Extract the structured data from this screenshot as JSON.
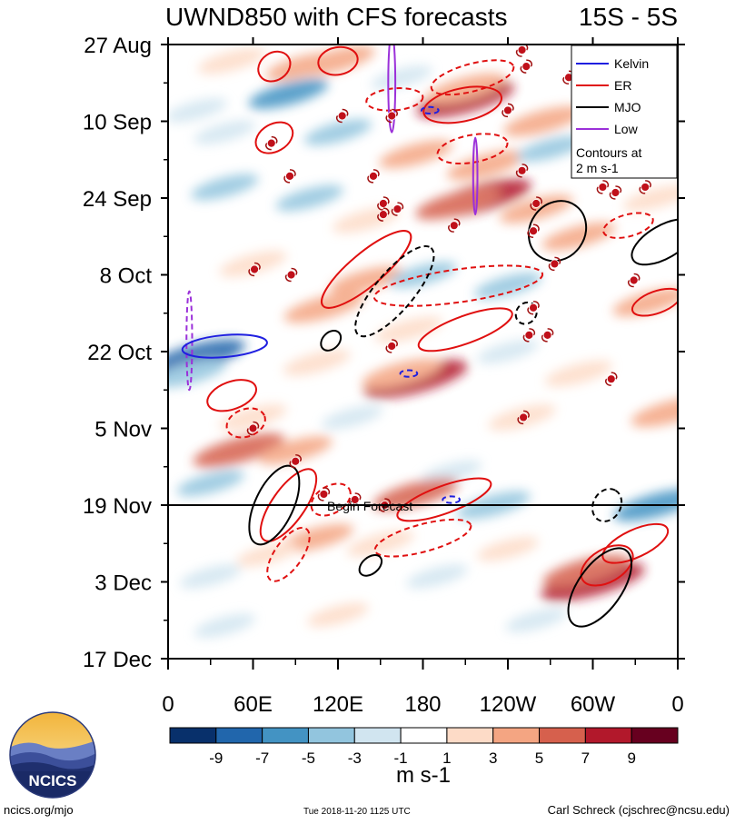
{
  "chart_data": {
    "type": "heatmap",
    "title_left": "UWND850 with CFS forecasts",
    "title_right": "15S - 5S",
    "x_ticks": [
      {
        "lon": 0,
        "label": "0"
      },
      {
        "lon": 60,
        "label": "60E"
      },
      {
        "lon": 120,
        "label": "120E"
      },
      {
        "lon": 180,
        "label": "180"
      },
      {
        "lon": 240,
        "label": "120W"
      },
      {
        "lon": 300,
        "label": "60W"
      },
      {
        "lon": 360,
        "label": "0"
      }
    ],
    "y_ticks": [
      {
        "day": 0,
        "label": "27 Aug"
      },
      {
        "day": 14,
        "label": "10 Sep"
      },
      {
        "day": 28,
        "label": "24 Sep"
      },
      {
        "day": 42,
        "label": "8 Oct"
      },
      {
        "day": 56,
        "label": "22 Oct"
      },
      {
        "day": 70,
        "label": "5 Nov"
      },
      {
        "day": 84,
        "label": "19 Nov"
      },
      {
        "day": 98,
        "label": "3 Dec"
      },
      {
        "day": 112,
        "label": "17 Dec"
      }
    ],
    "forecast_start_day": 84,
    "forecast_label": "Begin Forecast",
    "legend": {
      "entries": [
        {
          "name": "Kelvin",
          "color": "#1f1fe0"
        },
        {
          "name": "ER",
          "color": "#e01010"
        },
        {
          "name": "MJO",
          "color": "#000000"
        },
        {
          "name": "Low",
          "color": "#9b30d9"
        }
      ],
      "note_line1": "Contours at",
      "note_line2": "2 m s-1"
    },
    "colorbar": {
      "levels": [
        -10,
        -8,
        -6,
        -4,
        -2,
        0,
        2,
        4,
        6,
        8,
        10
      ],
      "colors": [
        "#08306b",
        "#2166ac",
        "#4393c3",
        "#92c5de",
        "#d1e5f0",
        "#ffffff",
        "#fddbc7",
        "#f4a582",
        "#d6604d",
        "#b2182b",
        "#67001f"
      ],
      "tick_labels": [
        "-9",
        "-7",
        "-5",
        "-3",
        "-1",
        "1",
        "3",
        "5",
        "7",
        "9"
      ],
      "units": "m s-1"
    },
    "anomaly_blobs": [
      {
        "lon": 45,
        "day": 3,
        "v": 3
      },
      {
        "lon": 95,
        "day": 4,
        "v": 4
      },
      {
        "lon": 118,
        "day": 3,
        "v": 5
      },
      {
        "lon": 165,
        "day": 6,
        "v": -2
      },
      {
        "lon": 210,
        "day": 10,
        "v": 8
      },
      {
        "lon": 210,
        "day": 8,
        "v": 5
      },
      {
        "lon": 85,
        "day": 9,
        "v": -5
      },
      {
        "lon": 20,
        "day": 12,
        "v": -2
      },
      {
        "lon": 265,
        "day": 14,
        "v": 5
      },
      {
        "lon": 40,
        "day": 16,
        "v": -2
      },
      {
        "lon": 120,
        "day": 16,
        "v": -3
      },
      {
        "lon": 175,
        "day": 20,
        "v": 4
      },
      {
        "lon": 225,
        "day": 22,
        "v": 5
      },
      {
        "lon": 270,
        "day": 19,
        "v": -3
      },
      {
        "lon": 330,
        "day": 20,
        "v": 4
      },
      {
        "lon": 220,
        "day": 28,
        "v": 9
      },
      {
        "lon": 205,
        "day": 29,
        "v": 6
      },
      {
        "lon": 140,
        "day": 32,
        "v": 3
      },
      {
        "lon": 260,
        "day": 30,
        "v": 4
      },
      {
        "lon": 345,
        "day": 28,
        "v": 3
      },
      {
        "lon": 40,
        "day": 26,
        "v": -3
      },
      {
        "lon": 100,
        "day": 28,
        "v": -3
      },
      {
        "lon": 290,
        "day": 35,
        "v": 4
      },
      {
        "lon": 60,
        "day": 40,
        "v": 3
      },
      {
        "lon": 140,
        "day": 43,
        "v": 4
      },
      {
        "lon": 180,
        "day": 42,
        "v": -3
      },
      {
        "lon": 240,
        "day": 44,
        "v": -3
      },
      {
        "lon": 340,
        "day": 47,
        "v": 4
      },
      {
        "lon": 110,
        "day": 48,
        "v": 5
      },
      {
        "lon": 170,
        "day": 52,
        "v": 3
      },
      {
        "lon": 20,
        "day": 57,
        "v": -8
      },
      {
        "lon": 15,
        "day": 60,
        "v": -4
      },
      {
        "lon": 175,
        "day": 61,
        "v": 9
      },
      {
        "lon": 165,
        "day": 60,
        "v": 5
      },
      {
        "lon": 105,
        "day": 58,
        "v": 3
      },
      {
        "lon": 290,
        "day": 60,
        "v": 3
      },
      {
        "lon": 240,
        "day": 56,
        "v": -2
      },
      {
        "lon": 60,
        "day": 68,
        "v": 3
      },
      {
        "lon": 130,
        "day": 68,
        "v": -2
      },
      {
        "lon": 250,
        "day": 68,
        "v": 3
      },
      {
        "lon": 355,
        "day": 67,
        "v": 5
      },
      {
        "lon": 50,
        "day": 74,
        "v": 7
      },
      {
        "lon": 90,
        "day": 74,
        "v": 4
      },
      {
        "lon": 30,
        "day": 80,
        "v": -3
      },
      {
        "lon": 200,
        "day": 78,
        "v": -2
      },
      {
        "lon": 175,
        "day": 82,
        "v": 6
      },
      {
        "lon": 230,
        "day": 84,
        "v": -4
      },
      {
        "lon": 345,
        "day": 84,
        "v": -6
      },
      {
        "lon": 105,
        "day": 90,
        "v": 4
      },
      {
        "lon": 150,
        "day": 91,
        "v": 3
      },
      {
        "lon": 70,
        "day": 93,
        "v": 2
      },
      {
        "lon": 300,
        "day": 98,
        "v": 9
      },
      {
        "lon": 295,
        "day": 96,
        "v": 6
      },
      {
        "lon": 30,
        "day": 97,
        "v": -2
      },
      {
        "lon": 190,
        "day": 97,
        "v": -2
      },
      {
        "lon": 240,
        "day": 92,
        "v": 2
      },
      {
        "lon": 120,
        "day": 104,
        "v": 2
      },
      {
        "lon": 40,
        "day": 106,
        "v": -2
      },
      {
        "lon": 260,
        "day": 105,
        "v": -2
      }
    ],
    "contours": [
      {
        "kind": "ER",
        "dashed": false,
        "lon": 75,
        "day": 4,
        "rx": 12,
        "ry": 2.5,
        "rot": -35
      },
      {
        "kind": "ER",
        "dashed": false,
        "lon": 120,
        "day": 3,
        "rx": 14,
        "ry": 2.5,
        "rot": -10
      },
      {
        "kind": "ER",
        "dashed": true,
        "lon": 215,
        "day": 6,
        "rx": 30,
        "ry": 2.5,
        "rot": -15
      },
      {
        "kind": "ER",
        "dashed": false,
        "lon": 208,
        "day": 11,
        "rx": 28,
        "ry": 3,
        "rot": -12
      },
      {
        "kind": "ER",
        "dashed": true,
        "lon": 160,
        "day": 10,
        "rx": 20,
        "ry": 2,
        "rot": -5
      },
      {
        "kind": "ER",
        "dashed": true,
        "lon": 215,
        "day": 19,
        "rx": 25,
        "ry": 2.5,
        "rot": -10
      },
      {
        "kind": "ER",
        "dashed": false,
        "lon": 75,
        "day": 17,
        "rx": 14,
        "ry": 2.5,
        "rot": -30
      },
      {
        "kind": "ER",
        "dashed": false,
        "lon": 140,
        "day": 41,
        "rx": 40,
        "ry": 3,
        "rot": -40
      },
      {
        "kind": "ER",
        "dashed": false,
        "lon": 210,
        "day": 52,
        "rx": 35,
        "ry": 2.5,
        "rot": -20
      },
      {
        "kind": "ER",
        "dashed": true,
        "lon": 205,
        "day": 44,
        "rx": 60,
        "ry": 3,
        "rot": -8
      },
      {
        "kind": "ER",
        "dashed": false,
        "lon": 45,
        "day": 64,
        "rx": 18,
        "ry": 2.5,
        "rot": -20
      },
      {
        "kind": "ER",
        "dashed": true,
        "lon": 55,
        "day": 69,
        "rx": 14,
        "ry": 2.5,
        "rot": -20
      },
      {
        "kind": "ER",
        "dashed": false,
        "lon": 85,
        "day": 84,
        "rx": 30,
        "ry": 3,
        "rot": -55
      },
      {
        "kind": "ER",
        "dashed": true,
        "lon": 85,
        "day": 93,
        "rx": 22,
        "ry": 2.5,
        "rot": -55
      },
      {
        "kind": "ER",
        "dashed": false,
        "lon": 195,
        "day": 83,
        "rx": 35,
        "ry": 2.5,
        "rot": -20
      },
      {
        "kind": "ER",
        "dashed": true,
        "lon": 180,
        "day": 90,
        "rx": 35,
        "ry": 2.5,
        "rot": -15
      },
      {
        "kind": "ER",
        "dashed": true,
        "lon": 115,
        "day": 83,
        "rx": 15,
        "ry": 2.5,
        "rot": -30
      },
      {
        "kind": "ER",
        "dashed": false,
        "lon": 330,
        "day": 91,
        "rx": 25,
        "ry": 2.5,
        "rot": -25
      },
      {
        "kind": "ER",
        "dashed": false,
        "lon": 310,
        "day": 95,
        "rx": 20,
        "ry": 3,
        "rot": -30
      },
      {
        "kind": "ER",
        "dashed": true,
        "lon": 325,
        "day": 33,
        "rx": 18,
        "ry": 2,
        "rot": -15
      },
      {
        "kind": "ER",
        "dashed": false,
        "lon": 345,
        "day": 47,
        "rx": 18,
        "ry": 2,
        "rot": -20
      },
      {
        "kind": "MJO",
        "dashed": false,
        "lon": 275,
        "day": 34,
        "rx": 22,
        "ry": 5,
        "rot": -55
      },
      {
        "kind": "MJO",
        "dashed": false,
        "lon": 350,
        "day": 36,
        "rx": 25,
        "ry": 3,
        "rot": -30
      },
      {
        "kind": "MJO",
        "dashed": true,
        "lon": 160,
        "day": 45,
        "rx": 40,
        "ry": 3.5,
        "rot": -50
      },
      {
        "kind": "MJO",
        "dashed": false,
        "lon": 75,
        "day": 84,
        "rx": 30,
        "ry": 3.5,
        "rot": -65
      },
      {
        "kind": "MJO",
        "dashed": false,
        "lon": 305,
        "day": 99,
        "rx": 32,
        "ry": 4,
        "rot": -55
      },
      {
        "kind": "MJO",
        "dashed": true,
        "lon": 310,
        "day": 84,
        "rx": 12,
        "ry": 2.5,
        "rot": -60
      },
      {
        "kind": "MJO",
        "dashed": true,
        "lon": 253,
        "day": 49,
        "rx": 8,
        "ry": 1.8,
        "rot": -50
      },
      {
        "kind": "MJO",
        "dashed": false,
        "lon": 115,
        "day": 54,
        "rx": 8,
        "ry": 1.5,
        "rot": -45
      },
      {
        "kind": "MJO",
        "dashed": false,
        "lon": 143,
        "day": 95,
        "rx": 9,
        "ry": 1.5,
        "rot": -40
      },
      {
        "kind": "Low",
        "dashed": false,
        "lon": 158,
        "day": 7,
        "rx": 2.5,
        "ry": 9,
        "rot": 0
      },
      {
        "kind": "Low",
        "dashed": false,
        "lon": 217,
        "day": 24,
        "rx": 1.5,
        "ry": 7,
        "rot": 0
      },
      {
        "kind": "Low",
        "dashed": true,
        "lon": 15,
        "day": 54,
        "rx": 2,
        "ry": 9,
        "rot": 0
      },
      {
        "kind": "Kelvin",
        "dashed": false,
        "lon": 40,
        "day": 55,
        "rx": 30,
        "ry": 2,
        "rot": -5
      },
      {
        "kind": "Kelvin",
        "dashed": true,
        "lon": 185,
        "day": 12,
        "rx": 6,
        "ry": 0.6,
        "rot": 0
      },
      {
        "kind": "Kelvin",
        "dashed": true,
        "lon": 170,
        "day": 60,
        "rx": 6,
        "ry": 0.6,
        "rot": 0
      },
      {
        "kind": "Kelvin",
        "dashed": true,
        "lon": 200,
        "day": 83,
        "rx": 6,
        "ry": 0.6,
        "rot": 0
      }
    ],
    "storm_symbols": [
      {
        "lon": 250,
        "day": 1
      },
      {
        "lon": 253,
        "day": 4
      },
      {
        "lon": 283,
        "day": 6
      },
      {
        "lon": 240,
        "day": 12
      },
      {
        "lon": 123,
        "day": 13
      },
      {
        "lon": 73,
        "day": 18
      },
      {
        "lon": 86,
        "day": 24
      },
      {
        "lon": 145,
        "day": 24
      },
      {
        "lon": 250,
        "day": 23
      },
      {
        "lon": 307,
        "day": 26
      },
      {
        "lon": 316,
        "day": 27
      },
      {
        "lon": 337,
        "day": 26
      },
      {
        "lon": 152,
        "day": 29
      },
      {
        "lon": 162,
        "day": 30
      },
      {
        "lon": 152,
        "day": 31
      },
      {
        "lon": 202,
        "day": 33
      },
      {
        "lon": 260,
        "day": 29
      },
      {
        "lon": 258,
        "day": 34
      },
      {
        "lon": 273,
        "day": 40
      },
      {
        "lon": 61,
        "day": 41
      },
      {
        "lon": 87,
        "day": 42
      },
      {
        "lon": 329,
        "day": 43
      },
      {
        "lon": 258,
        "day": 48
      },
      {
        "lon": 255,
        "day": 53
      },
      {
        "lon": 268,
        "day": 53
      },
      {
        "lon": 158,
        "day": 55
      },
      {
        "lon": 313,
        "day": 61
      },
      {
        "lon": 251,
        "day": 68
      },
      {
        "lon": 60,
        "day": 70
      },
      {
        "lon": 90,
        "day": 76
      },
      {
        "lon": 110,
        "day": 82
      },
      {
        "lon": 132,
        "day": 83
      },
      {
        "lon": 153,
        "day": 84
      },
      {
        "lon": 158,
        "day": 13
      }
    ]
  },
  "footer": {
    "left": "ncics.org/mjo",
    "center": "Tue 2018-11-20 1125 UTC",
    "right": "Carl Schreck (cjschrec@ncsu.edu)"
  },
  "logo": {
    "text": "NCICS"
  }
}
